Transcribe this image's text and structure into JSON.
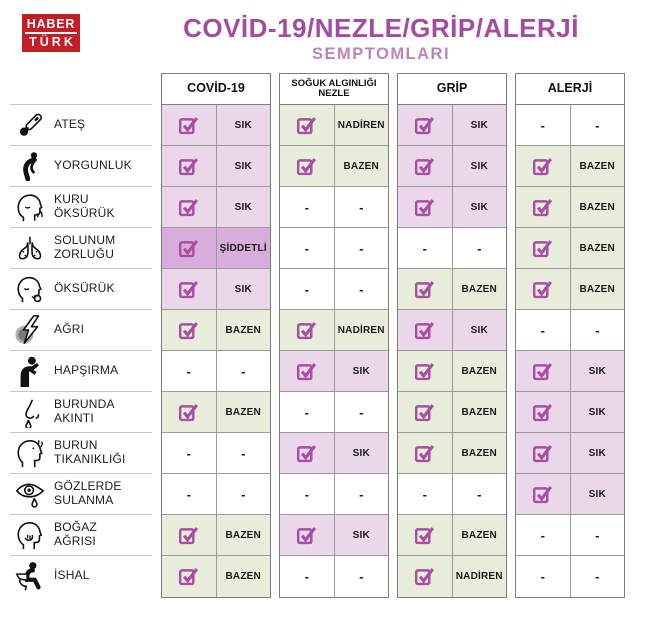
{
  "brand": {
    "name": "HABERTÜRK",
    "line1": "HABER",
    "line2": "TÜRK",
    "bg_color": "#c31e25"
  },
  "header": {
    "title": "COVİD-19/NEZLE/GRİP/ALERJİ",
    "subtitle": "SEMPTOMLARI",
    "title_color": "#a44a9f",
    "subtitle_color": "#ba85bc"
  },
  "chart_data": {
    "type": "table",
    "title": "COVİD-19/NEZLE/GRİP/ALERJİ SEMPTOMLARI",
    "columns": [
      {
        "id": "covid",
        "label": "COVİD-19"
      },
      {
        "id": "nezle",
        "label": "SOĞUK ALGINLIĞI\nNEZLE"
      },
      {
        "id": "grip",
        "label": "GRİP"
      },
      {
        "id": "alerji",
        "label": "ALERJİ"
      }
    ],
    "frequency_levels": [
      "SIK",
      "BAZEN",
      "NADİREN",
      "ŞİDDETLİ"
    ],
    "severity_colors": {
      "SIK": "#ead7ea",
      "BAZEN": "#e7ecdb",
      "NADİREN": "#e7ecdb",
      "ŞİDDETLİ": "#d9addb",
      "none": "#ffffff"
    },
    "check_color": "#a84fa3",
    "dash": "-",
    "rows": [
      {
        "label": "ATEŞ",
        "icon": "thermometer-icon",
        "values": {
          "covid": "SIK",
          "nezle": "NADİREN",
          "grip": "SIK",
          "alerji": null
        }
      },
      {
        "label": "YORGUNLUK",
        "icon": "tired-person-icon",
        "values": {
          "covid": "SIK",
          "nezle": "BAZEN",
          "grip": "SIK",
          "alerji": "BAZEN"
        }
      },
      {
        "label": "KURU ÖKSÜRÜK",
        "icon": "dry-cough-icon",
        "values": {
          "covid": "SIK",
          "nezle": null,
          "grip": "SIK",
          "alerji": "BAZEN"
        }
      },
      {
        "label": "SOLUNUM\nZORLUĞU",
        "icon": "lungs-icon",
        "values": {
          "covid": "ŞİDDETLİ",
          "nezle": null,
          "grip": null,
          "alerji": "BAZEN"
        }
      },
      {
        "label": "ÖKSÜRÜK",
        "icon": "cough-icon",
        "values": {
          "covid": "SIK",
          "nezle": null,
          "grip": "BAZEN",
          "alerji": "BAZEN"
        }
      },
      {
        "label": "AĞRI",
        "icon": "pain-icon",
        "values": {
          "covid": "BAZEN",
          "nezle": "NADİREN",
          "grip": "SIK",
          "alerji": null
        }
      },
      {
        "label": "HAPŞIRMA",
        "icon": "sneeze-icon",
        "values": {
          "covid": null,
          "nezle": "SIK",
          "grip": "BAZEN",
          "alerji": "SIK"
        }
      },
      {
        "label": "BURUNDA\nAKINTI",
        "icon": "runny-nose-icon",
        "values": {
          "covid": "BAZEN",
          "nezle": null,
          "grip": "BAZEN",
          "alerji": "SIK"
        }
      },
      {
        "label": "BURUN\nTIKANIKLIĞI",
        "icon": "blocked-nose-icon",
        "values": {
          "covid": null,
          "nezle": "SIK",
          "grip": "BAZEN",
          "alerji": "SIK"
        }
      },
      {
        "label": "GÖZLERDE\nSULANMA",
        "icon": "watery-eye-icon",
        "values": {
          "covid": null,
          "nezle": null,
          "grip": null,
          "alerji": "SIK"
        }
      },
      {
        "label": "BOĞAZ\nAĞRISI",
        "icon": "sore-throat-icon",
        "values": {
          "covid": "BAZEN",
          "nezle": "SIK",
          "grip": "BAZEN",
          "alerji": null
        }
      },
      {
        "label": "İSHAL",
        "icon": "toilet-person-icon",
        "values": {
          "covid": "BAZEN",
          "nezle": null,
          "grip": "NADİREN",
          "alerji": null
        }
      }
    ]
  }
}
